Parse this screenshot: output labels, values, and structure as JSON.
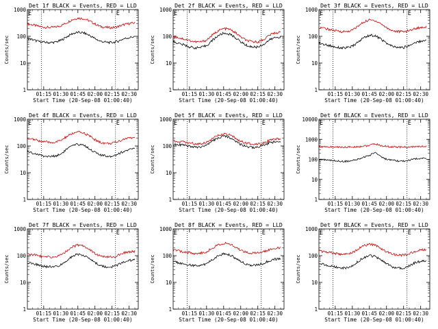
{
  "colors": {
    "events": "#000000",
    "lld": "#cc0000",
    "axis": "#000000",
    "background": "#ffffff"
  },
  "chart_data": [
    {
      "type": "line",
      "title": "Det 1f BLACK = Events, RED = LLD",
      "xlabel": "Start Time (20-Sep-08 01:00:40)",
      "ylabel": "Counts/sec",
      "y_scale": "log",
      "ylim": [
        1,
        1000
      ],
      "y_ticks": [
        "1",
        "10",
        "100",
        "1000"
      ],
      "x_ticks": [
        "01:15",
        "01:30",
        "01:45",
        "02:00",
        "02:15",
        "02:30"
      ],
      "marker_labels": [
        "E",
        "E"
      ],
      "marker_times": [
        "01:00:40",
        "02:18:00"
      ],
      "dotted_lines_at": [
        "01:13:00",
        "02:18:00"
      ],
      "x": [
        "01:00:40",
        "01:05",
        "01:10",
        "01:15",
        "01:20",
        "01:25",
        "01:30",
        "01:35",
        "01:40",
        "01:45",
        "01:50",
        "01:55",
        "02:00",
        "02:05",
        "02:10",
        "02:15",
        "02:20",
        "02:25",
        "02:30",
        "02:35"
      ],
      "series": [
        {
          "name": "LLD",
          "color": "#cc0000",
          "values": [
            290,
            270,
            240,
            220,
            215,
            220,
            250,
            320,
            420,
            480,
            460,
            380,
            290,
            230,
            215,
            210,
            230,
            270,
            300,
            320
          ]
        },
        {
          "name": "Events",
          "color": "#000000",
          "values": [
            85,
            75,
            65,
            60,
            58,
            60,
            70,
            95,
            125,
            140,
            135,
            110,
            82,
            65,
            60,
            58,
            65,
            80,
            90,
            98
          ]
        }
      ]
    },
    {
      "type": "line",
      "title": "Det 2f BLACK = Events, RED = LLD",
      "xlabel": "Start Time (20-Sep-08 01:00:40)",
      "ylabel": "Counts/sec",
      "y_scale": "log",
      "ylim": [
        1,
        1000
      ],
      "y_ticks": [
        "1",
        "10",
        "100",
        "1000"
      ],
      "x_ticks": [
        "01:15",
        "01:30",
        "01:45",
        "02:00",
        "02:15",
        "02:30"
      ],
      "marker_labels": [
        "E",
        "E"
      ],
      "marker_times": [
        "01:00:40",
        "02:18:00"
      ],
      "dotted_lines_at": [
        "01:13:00",
        "02:18:00"
      ],
      "x": [
        "01:00:40",
        "01:05",
        "01:10",
        "01:15",
        "01:20",
        "01:25",
        "01:30",
        "01:35",
        "01:40",
        "01:45",
        "01:50",
        "01:55",
        "02:00",
        "02:05",
        "02:10",
        "02:15",
        "02:20",
        "02:25",
        "02:30",
        "02:35"
      ],
      "series": [
        {
          "name": "LLD",
          "color": "#cc0000",
          "values": [
            100,
            90,
            80,
            70,
            62,
            62,
            72,
            110,
            160,
            195,
            185,
            140,
            95,
            70,
            62,
            62,
            75,
            110,
            135,
            140
          ]
        },
        {
          "name": "Events",
          "color": "#000000",
          "values": [
            65,
            55,
            48,
            40,
            37,
            38,
            45,
            70,
            105,
            130,
            122,
            92,
            62,
            46,
            40,
            40,
            50,
            72,
            90,
            95
          ]
        }
      ]
    },
    {
      "type": "line",
      "title": "Det 3f BLACK = Events, RED = LLD",
      "xlabel": "Start Time (20-Sep-08 01:00:40)",
      "ylabel": "Counts/sec",
      "y_scale": "log",
      "ylim": [
        1,
        1000
      ],
      "y_ticks": [
        "1",
        "10",
        "100",
        "1000"
      ],
      "x_ticks": [
        "01:15",
        "01:30",
        "01:45",
        "02:00",
        "02:15",
        "02:30"
      ],
      "marker_labels": [
        "E",
        "E"
      ],
      "marker_times": [
        "01:00:40",
        "02:18:00"
      ],
      "dotted_lines_at": [
        "01:13:00",
        "02:18:00"
      ],
      "x": [
        "01:00:40",
        "01:05",
        "01:10",
        "01:15",
        "01:20",
        "01:25",
        "01:30",
        "01:35",
        "01:40",
        "01:45",
        "01:50",
        "01:55",
        "02:00",
        "02:05",
        "02:10",
        "02:15",
        "02:20",
        "02:25",
        "02:30",
        "02:35"
      ],
      "series": [
        {
          "name": "LLD",
          "color": "#cc0000",
          "values": [
            220,
            200,
            180,
            160,
            150,
            150,
            170,
            240,
            340,
            410,
            390,
            300,
            210,
            165,
            150,
            150,
            165,
            195,
            215,
            225
          ]
        },
        {
          "name": "Events",
          "color": "#000000",
          "values": [
            55,
            50,
            45,
            40,
            37,
            37,
            42,
            60,
            90,
            110,
            105,
            80,
            55,
            42,
            38,
            38,
            45,
            58,
            66,
            70
          ]
        }
      ]
    },
    {
      "type": "line",
      "title": "Det 4f BLACK = Events, RED = LLD",
      "xlabel": "Start Time (20-Sep-08 01:00:40)",
      "ylabel": "Counts/sec",
      "y_scale": "log",
      "ylim": [
        1,
        1000
      ],
      "y_ticks": [
        "1",
        "10",
        "100",
        "1000"
      ],
      "x_ticks": [
        "01:15",
        "01:30",
        "01:45",
        "02:00",
        "02:15",
        "02:30"
      ],
      "marker_labels": [
        "E",
        "E"
      ],
      "marker_times": [
        "01:00:40",
        "02:18:00"
      ],
      "dotted_lines_at": [
        "01:13:00",
        "02:18:00"
      ],
      "x": [
        "01:00:40",
        "01:05",
        "01:10",
        "01:15",
        "01:20",
        "01:25",
        "01:30",
        "01:35",
        "01:40",
        "01:45",
        "01:50",
        "01:55",
        "02:00",
        "02:05",
        "02:10",
        "02:15",
        "02:20",
        "02:25",
        "02:30",
        "02:35"
      ],
      "series": [
        {
          "name": "LLD",
          "color": "#cc0000",
          "values": [
            200,
            180,
            160,
            145,
            135,
            138,
            160,
            220,
            290,
            330,
            310,
            240,
            170,
            135,
            125,
            125,
            145,
            180,
            200,
            210
          ]
        },
        {
          "name": "Events",
          "color": "#000000",
          "values": [
            65,
            55,
            48,
            42,
            40,
            42,
            50,
            75,
            100,
            115,
            110,
            80,
            58,
            45,
            42,
            42,
            50,
            62,
            72,
            80
          ]
        }
      ]
    },
    {
      "type": "line",
      "title": "Det 5f BLACK = Events, RED = LLD",
      "xlabel": "Start Time (20-Sep-08 01:00:40)",
      "ylabel": "Counts/sec",
      "y_scale": "log",
      "ylim": [
        1,
        1000
      ],
      "y_ticks": [
        "1",
        "10",
        "100",
        "1000"
      ],
      "x_ticks": [
        "01:15",
        "01:30",
        "01:45",
        "02:00",
        "02:15",
        "02:30"
      ],
      "marker_labels": [
        "E",
        "E"
      ],
      "marker_times": [
        "01:00:40",
        "02:18:00"
      ],
      "dotted_lines_at": [
        "01:13:00",
        "02:18:00"
      ],
      "x": [
        "01:00:40",
        "01:05",
        "01:10",
        "01:15",
        "01:20",
        "01:25",
        "01:30",
        "01:35",
        "01:40",
        "01:45",
        "01:50",
        "01:55",
        "02:00",
        "02:05",
        "02:10",
        "02:15",
        "02:20",
        "02:25",
        "02:30",
        "02:35"
      ],
      "series": [
        {
          "name": "LLD",
          "color": "#cc0000",
          "values": [
            155,
            150,
            140,
            130,
            120,
            122,
            140,
            185,
            245,
            275,
            260,
            200,
            150,
            125,
            118,
            120,
            135,
            160,
            175,
            180
          ]
        },
        {
          "name": "Events",
          "color": "#000000",
          "values": [
            120,
            115,
            105,
            95,
            90,
            90,
            105,
            150,
            200,
            230,
            215,
            160,
            115,
            95,
            88,
            90,
            105,
            130,
            145,
            150
          ]
        }
      ]
    },
    {
      "type": "line",
      "title": "Det 6f BLACK = Events, RED = LLD",
      "xlabel": "Start Time (20-Sep-08 01:00:40)",
      "ylabel": "Counts/sec",
      "y_scale": "log",
      "ylim": [
        1,
        10000
      ],
      "y_ticks": [
        "1",
        "10",
        "100",
        "1000",
        "10000"
      ],
      "x_ticks": [
        "01:15",
        "01:30",
        "01:45",
        "02:00",
        "02:15",
        "02:30"
      ],
      "marker_labels": [
        "E",
        "E"
      ],
      "marker_times": [
        "01:00:40",
        "02:18:00"
      ],
      "dotted_lines_at": [
        "01:13:00",
        "02:18:00"
      ],
      "x": [
        "01:00:40",
        "01:05",
        "01:10",
        "01:15",
        "01:20",
        "01:25",
        "01:30",
        "01:35",
        "01:40",
        "01:45",
        "01:50",
        "01:55",
        "02:00",
        "02:05",
        "02:10",
        "02:15",
        "02:20",
        "02:25",
        "02:30",
        "02:35"
      ],
      "series": [
        {
          "name": "LLD",
          "color": "#cc0000",
          "values": [
            440,
            430,
            420,
            410,
            405,
            405,
            410,
            430,
            460,
            490,
            600,
            480,
            440,
            420,
            410,
            405,
            410,
            425,
            440,
            445
          ]
        },
        {
          "name": "Events",
          "color": "#000000",
          "values": [
            100,
            95,
            90,
            85,
            80,
            80,
            85,
            100,
            130,
            155,
            230,
            140,
            100,
            88,
            82,
            82,
            90,
            105,
            115,
            118
          ]
        }
      ]
    },
    {
      "type": "line",
      "title": "Det 7f BLACK = Events, RED = LLD",
      "xlabel": "Start Time (20-Sep-08 01:00:40)",
      "ylabel": "Counts/sec",
      "y_scale": "log",
      "ylim": [
        1,
        1000
      ],
      "y_ticks": [
        "1",
        "10",
        "100",
        "1000"
      ],
      "x_ticks": [
        "01:15",
        "01:30",
        "01:45",
        "02:00",
        "02:15",
        "02:30"
      ],
      "marker_labels": [
        "E",
        "E"
      ],
      "marker_times": [
        "01:00:40",
        "02:18:00"
      ],
      "dotted_lines_at": [
        "01:13:00",
        "02:18:00"
      ],
      "x": [
        "01:00:40",
        "01:05",
        "01:10",
        "01:15",
        "01:20",
        "01:25",
        "01:30",
        "01:35",
        "01:40",
        "01:45",
        "01:50",
        "01:55",
        "02:00",
        "02:05",
        "02:10",
        "02:15",
        "02:20",
        "02:25",
        "02:30",
        "02:35"
      ],
      "series": [
        {
          "name": "LLD",
          "color": "#cc0000",
          "values": [
            120,
            110,
            100,
            92,
            88,
            90,
            105,
            150,
            210,
            250,
            235,
            175,
            120,
            95,
            88,
            88,
            100,
            125,
            140,
            145
          ]
        },
        {
          "name": "Events",
          "color": "#000000",
          "values": [
            55,
            50,
            45,
            40,
            38,
            38,
            45,
            65,
            95,
            112,
            105,
            78,
            55,
            42,
            38,
            38,
            45,
            58,
            66,
            70
          ]
        }
      ]
    },
    {
      "type": "line",
      "title": "Det 8f BLACK = Events, RED = LLD",
      "xlabel": "Start Time (20-Sep-08 01:00:40)",
      "ylabel": "Counts/sec",
      "y_scale": "log",
      "ylim": [
        1,
        1000
      ],
      "y_ticks": [
        "1",
        "10",
        "100",
        "1000"
      ],
      "x_ticks": [
        "01:15",
        "01:30",
        "01:45",
        "02:00",
        "02:15",
        "02:30"
      ],
      "marker_labels": [
        "E",
        "E"
      ],
      "marker_times": [
        "01:00:40",
        "02:18:00"
      ],
      "dotted_lines_at": [
        "01:13:00",
        "02:18:00"
      ],
      "x": [
        "01:00:40",
        "01:05",
        "01:10",
        "01:15",
        "01:20",
        "01:25",
        "01:30",
        "01:35",
        "01:40",
        "01:45",
        "01:50",
        "01:55",
        "02:00",
        "02:05",
        "02:10",
        "02:15",
        "02:20",
        "02:25",
        "02:30",
        "02:35"
      ],
      "series": [
        {
          "name": "LLD",
          "color": "#cc0000",
          "values": [
            160,
            150,
            140,
            130,
            122,
            124,
            140,
            190,
            255,
            290,
            275,
            210,
            160,
            135,
            125,
            125,
            140,
            170,
            190,
            200
          ]
        },
        {
          "name": "Events",
          "color": "#000000",
          "values": [
            62,
            55,
            50,
            45,
            42,
            42,
            50,
            70,
            100,
            118,
            110,
            82,
            60,
            48,
            44,
            44,
            52,
            65,
            74,
            78
          ]
        }
      ]
    },
    {
      "type": "line",
      "title": "Det 9f BLACK = Events, RED = LLD",
      "xlabel": "Start Time (20-Sep-08 01:00:40)",
      "ylabel": "Counts/sec",
      "y_scale": "log",
      "ylim": [
        1,
        1000
      ],
      "y_ticks": [
        "1",
        "10",
        "100",
        "1000"
      ],
      "x_ticks": [
        "01:15",
        "01:30",
        "01:45",
        "02:00",
        "02:15",
        "02:30"
      ],
      "marker_labels": [
        "E",
        "E"
      ],
      "marker_times": [
        "01:00:40",
        "02:18:00"
      ],
      "dotted_lines_at": [
        "01:13:00",
        "02:18:00"
      ],
      "x": [
        "01:00:40",
        "01:05",
        "01:10",
        "01:15",
        "01:20",
        "01:25",
        "01:30",
        "01:35",
        "01:40",
        "01:45",
        "01:50",
        "01:55",
        "02:00",
        "02:05",
        "02:10",
        "02:15",
        "02:20",
        "02:25",
        "02:30",
        "02:35"
      ],
      "series": [
        {
          "name": "LLD",
          "color": "#cc0000",
          "values": [
            150,
            140,
            130,
            120,
            112,
            114,
            130,
            175,
            235,
            265,
            250,
            190,
            140,
            112,
            105,
            105,
            118,
            145,
            165,
            170
          ]
        },
        {
          "name": "Events",
          "color": "#000000",
          "values": [
            52,
            47,
            42,
            38,
            35,
            35,
            42,
            60,
            85,
            100,
            95,
            70,
            50,
            38,
            35,
            35,
            42,
            54,
            62,
            66
          ]
        }
      ]
    }
  ]
}
